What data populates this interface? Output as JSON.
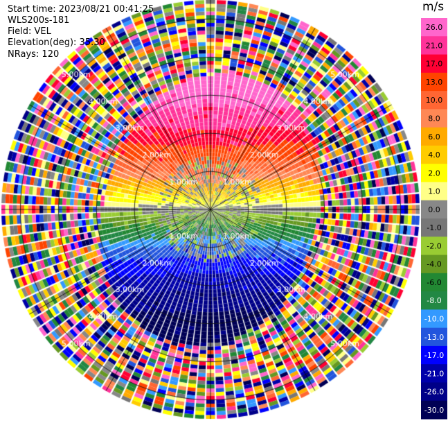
{
  "header": {
    "start_time": "Start time: 2023/08/21 00:41:25",
    "instrument": "WLS200s-181",
    "field": "Field: VEL",
    "elevation": "Elevation(deg): 35.30",
    "nrays": "NRays: 120"
  },
  "chart_data": {
    "type": "heatmap",
    "projection": "polar PPI",
    "field": "VEL",
    "units": "m/s",
    "nrays": 120,
    "range_rings_km": [
      1.0,
      2.0,
      3.0,
      4.0,
      5.0
    ],
    "ring_labels": [
      "1.00km",
      "2.00km",
      "3.00km",
      "4.00km",
      "5.00km"
    ],
    "max_range_km": 5.5,
    "radial_lines_deg": [
      0,
      30,
      60,
      90,
      120,
      150,
      180,
      210,
      240,
      270,
      300,
      330
    ],
    "colorbar": {
      "title": "m/s",
      "ticks": [
        "26.0",
        "21.0",
        "17.0",
        "13.0",
        "10.0",
        "8.0",
        "6.0",
        "4.0",
        "2.0",
        "1.0",
        "0.0",
        "-1.0",
        "-2.0",
        "-4.0",
        "-6.0",
        "-8.0",
        "-10.0",
        "-13.0",
        "-17.0",
        "-21.0",
        "-26.0",
        "-30.0"
      ],
      "colors": [
        "#ff66cc",
        "#ff3399",
        "#ff0033",
        "#ff4400",
        "#ff6633",
        "#ff8855",
        "#ffaa00",
        "#ffcc00",
        "#ffff00",
        "#ffff88",
        "#888888",
        "#777777",
        "#99cc33",
        "#669922",
        "#228833",
        "#228844",
        "#3399ff",
        "#2255dd",
        "#0000ff",
        "#0000aa",
        "#000088",
        "#000055"
      ]
    }
  }
}
